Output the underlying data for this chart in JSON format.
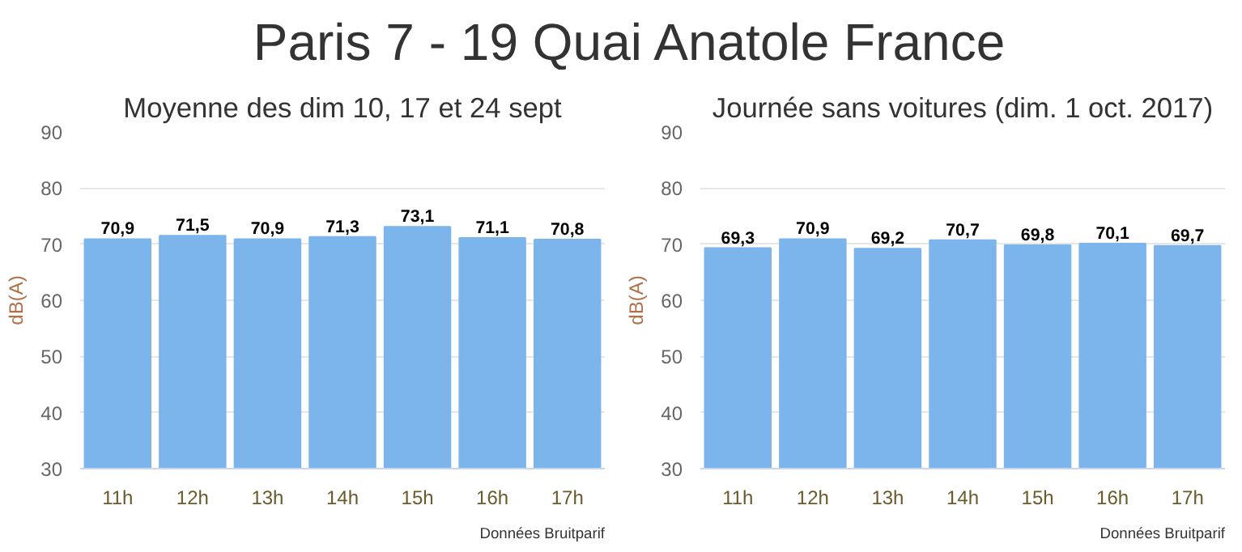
{
  "chart_data": [
    {
      "type": "bar",
      "title": "Paris 7 - 19 Quai Anatole France",
      "subtitle": "Moyenne des dim 10, 17 et 24 sept",
      "ylabel": "dB(A)",
      "categories": [
        "11h",
        "12h",
        "13h",
        "14h",
        "15h",
        "16h",
        "17h"
      ],
      "values": [
        70.9,
        71.5,
        70.9,
        71.3,
        73.1,
        71.1,
        70.8
      ],
      "value_labels": [
        "70,9",
        "71,5",
        "70,9",
        "71,3",
        "73,1",
        "71,1",
        "70,8"
      ],
      "color": "#7cb5ec",
      "ylim": [
        30,
        90
      ],
      "yticks": [
        30,
        40,
        50,
        60,
        70,
        80,
        90
      ],
      "grid": "y",
      "annotations": [
        "Données Bruitparif"
      ]
    },
    {
      "type": "bar",
      "subtitle": "Journée sans voitures (dim. 1 oct. 2017)",
      "ylabel": "dB(A)",
      "categories": [
        "11h",
        "12h",
        "13h",
        "14h",
        "15h",
        "16h",
        "17h"
      ],
      "values": [
        69.3,
        70.9,
        69.2,
        70.7,
        69.8,
        70.1,
        69.7
      ],
      "value_labels": [
        "69,3",
        "70,9",
        "69,2",
        "70,7",
        "69,8",
        "70,1",
        "69,7"
      ],
      "color": "#7cb5ec",
      "ylim": [
        30,
        90
      ],
      "yticks": [
        30,
        40,
        50,
        60,
        70,
        80,
        90
      ],
      "grid": "y",
      "annotations": [
        "Données Bruitparif"
      ]
    }
  ]
}
